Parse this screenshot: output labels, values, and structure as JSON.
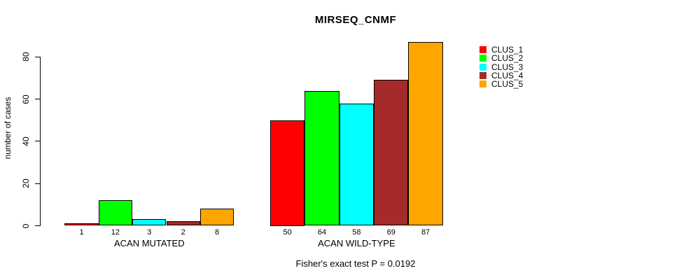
{
  "chart_data": {
    "type": "bar",
    "title": "MIRSEQ_CNMF",
    "ylabel": "number of cases",
    "footer": "Fisher's exact test P = 0.0192",
    "yticks": [
      0,
      20,
      40,
      60,
      80
    ],
    "ylim": [
      0,
      87
    ],
    "grid": false,
    "legend_position": "right",
    "categories": [
      "ACAN MUTATED",
      "ACAN WILD-TYPE"
    ],
    "series": [
      {
        "name": "CLUS_1",
        "color": "#FF0000",
        "values": [
          1,
          50
        ]
      },
      {
        "name": "CLUS_2",
        "color": "#00FF00",
        "values": [
          12,
          64
        ]
      },
      {
        "name": "CLUS_3",
        "color": "#00FFFF",
        "values": [
          3,
          58
        ]
      },
      {
        "name": "CLUS_4",
        "color": "#A52A2A",
        "values": [
          2,
          69
        ]
      },
      {
        "name": "CLUS_5",
        "color": "#FFA500",
        "values": [
          8,
          87
        ]
      }
    ],
    "bar_value_labels": {
      "ACAN MUTATED": [
        1,
        12,
        3,
        2,
        8
      ],
      "ACAN WILD-TYPE": [
        50,
        64,
        58,
        69,
        87
      ]
    }
  }
}
